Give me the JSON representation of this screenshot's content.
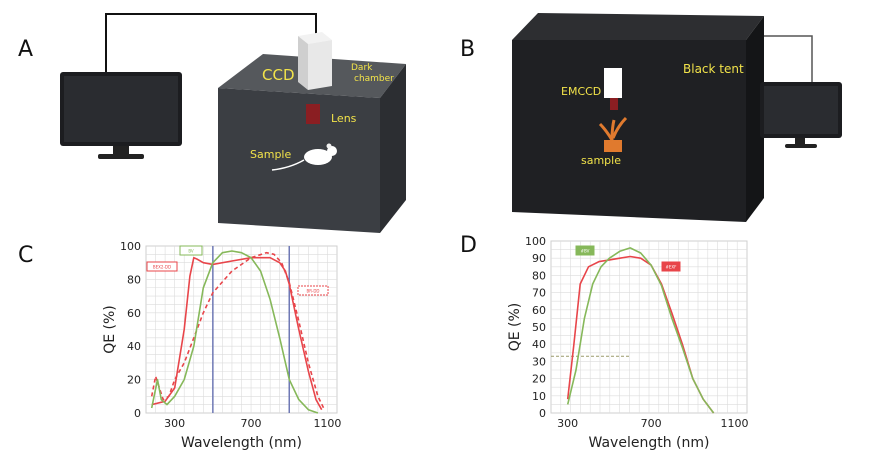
{
  "panels": {
    "a": {
      "letter": "A",
      "labels": {
        "camera": "CCD",
        "chamber": [
          "Dark",
          "chamber"
        ],
        "lens": "Lens",
        "sample": "Sample"
      }
    },
    "b": {
      "letter": "B",
      "labels": {
        "camera": "EMCCD",
        "enclosure": "Black tent",
        "sample": "sample"
      }
    },
    "c": {
      "letter": "C"
    },
    "d": {
      "letter": "D"
    }
  },
  "colors": {
    "chamber": "#3b3e43",
    "chamber_top": "#55585c",
    "tent": "#1f2023",
    "label_yellow": "#f2e34a",
    "lens": "#8a1e22",
    "series_red": "#e8454a",
    "series_green": "#86b85a",
    "marker_blue": "#6f79b5"
  },
  "chart_data": [
    {
      "type": "line",
      "panel": "C",
      "xlabel": "Wavelength (nm)",
      "ylabel": "QE (%)",
      "xlim": [
        150,
        1150
      ],
      "ylim": [
        0,
        100
      ],
      "xticks": [
        300,
        700,
        1100
      ],
      "yticks": [
        0,
        20,
        40,
        60,
        80,
        100
      ],
      "grid": true,
      "vlines": [
        500,
        900
      ],
      "series": [
        {
          "name": "BEX2-DD",
          "style": "solid",
          "color": "#e8454a",
          "x": [
            180,
            250,
            300,
            350,
            380,
            400,
            420,
            450,
            500,
            600,
            700,
            800,
            850,
            880,
            900,
            950,
            1000,
            1040,
            1070
          ],
          "y": [
            5,
            7,
            15,
            50,
            82,
            93,
            92,
            90,
            89,
            91,
            93,
            93,
            90,
            85,
            77,
            50,
            25,
            8,
            2
          ]
        },
        {
          "name": "BR-DD",
          "style": "dashed",
          "color": "#e8454a",
          "x": [
            180,
            200,
            220,
            240,
            270,
            300,
            350,
            400,
            450,
            500,
            600,
            700,
            780,
            820,
            860,
            900,
            950,
            1000,
            1050,
            1080
          ],
          "y": [
            10,
            22,
            15,
            8,
            10,
            20,
            30,
            45,
            60,
            72,
            85,
            93,
            96,
            95,
            90,
            78,
            55,
            30,
            10,
            3
          ]
        },
        {
          "name": "BV",
          "style": "solid",
          "color": "#86b85a",
          "x": [
            180,
            210,
            230,
            260,
            300,
            350,
            400,
            450,
            500,
            550,
            600,
            650,
            700,
            750,
            800,
            850,
            900,
            950,
            1000,
            1050
          ],
          "y": [
            3,
            20,
            8,
            5,
            10,
            20,
            40,
            75,
            90,
            96,
            97,
            96,
            93,
            85,
            68,
            45,
            20,
            8,
            2,
            0
          ]
        }
      ]
    },
    {
      "type": "line",
      "panel": "D",
      "xlabel": "Wavelength (nm)",
      "ylabel": "QE (%)",
      "xlim": [
        220,
        1160
      ],
      "ylim": [
        0,
        100
      ],
      "xticks": [
        300,
        700,
        1100
      ],
      "yticks": [
        0,
        10,
        20,
        30,
        40,
        50,
        60,
        70,
        80,
        90,
        100
      ],
      "grid": true,
      "hline": 33,
      "series": [
        {
          "name": "#EXF",
          "style": "solid",
          "color": "#e8454a",
          "x": [
            300,
            330,
            360,
            400,
            450,
            500,
            550,
            600,
            650,
            700,
            750,
            800,
            850,
            900,
            950,
            1000
          ],
          "y": [
            8,
            40,
            75,
            85,
            88,
            89,
            90,
            91,
            90,
            86,
            75,
            58,
            40,
            20,
            8,
            0
          ]
        },
        {
          "name": "#BV",
          "style": "solid",
          "color": "#86b85a",
          "x": [
            300,
            340,
            380,
            420,
            460,
            500,
            550,
            600,
            650,
            700,
            750,
            800,
            850,
            900,
            950,
            1000
          ],
          "y": [
            5,
            25,
            55,
            75,
            85,
            90,
            94,
            96,
            93,
            86,
            74,
            55,
            38,
            20,
            8,
            0
          ]
        }
      ]
    }
  ]
}
